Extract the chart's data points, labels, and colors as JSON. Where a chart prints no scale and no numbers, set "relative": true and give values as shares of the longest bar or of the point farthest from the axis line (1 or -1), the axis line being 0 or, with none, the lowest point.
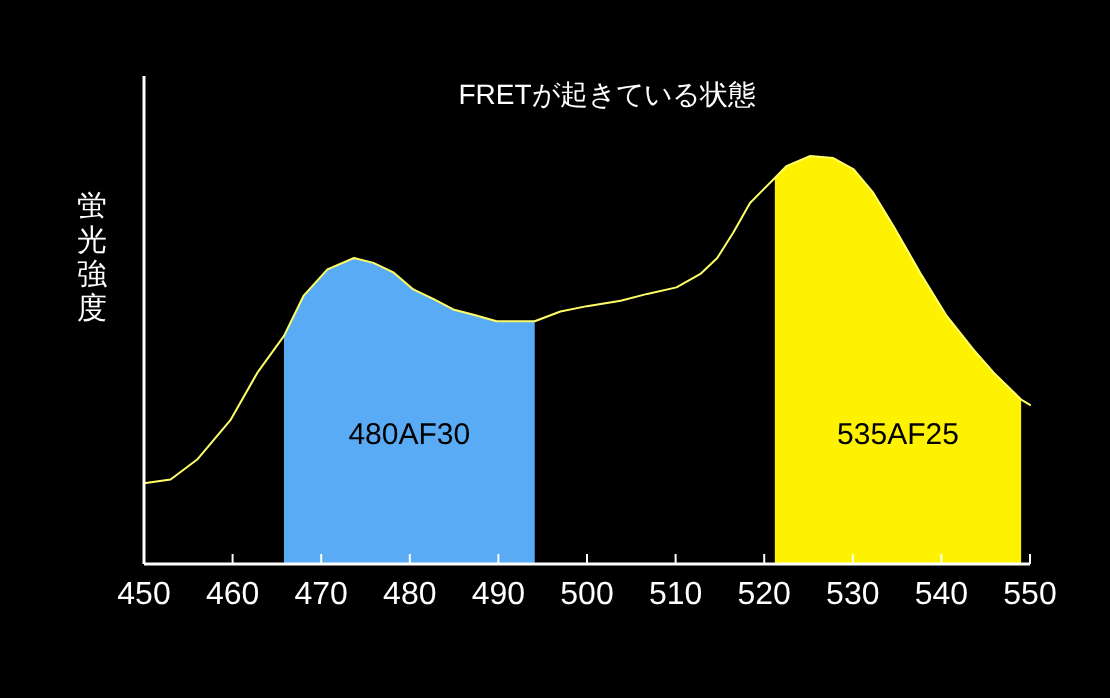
{
  "chart_data": {
    "type": "line",
    "title": "FRETが起きている状態",
    "ylabel": "蛍光強度",
    "relative": true,
    "xlim": [
      450,
      550
    ],
    "xticks": [
      450,
      460,
      470,
      480,
      490,
      500,
      510,
      520,
      530,
      540,
      550
    ],
    "series": [
      {
        "type": "area",
        "name": "480AF30",
        "color": "#5aabf5",
        "x": [
          465.8,
          468,
          470.7,
          473.7,
          475.9,
          478.2,
          480.4,
          482.7,
          484.9,
          487.2,
          489.8,
          494.1
        ],
        "values": [
          0.559,
          0.657,
          0.722,
          0.75,
          0.738,
          0.714,
          0.673,
          0.649,
          0.624,
          0.611,
          0.595,
          0.595
        ]
      },
      {
        "type": "area",
        "name": "535AF25",
        "color": "#fff200",
        "x": [
          521.2,
          522.5,
          525.2,
          527.8,
          530.1,
          532.3,
          534.6,
          537.6,
          540.6,
          543.6,
          545.9,
          549
        ],
        "values": [
          0.946,
          0.975,
          1.0,
          0.995,
          0.967,
          0.91,
          0.828,
          0.714,
          0.608,
          0.526,
          0.469,
          0.403
        ]
      },
      {
        "type": "line",
        "color": "#ffff66",
        "x": [
          450,
          453,
          456,
          459.8,
          462.8,
          465.8,
          468,
          470.7,
          473.7,
          475.9,
          478.2,
          480.4,
          482.7,
          484.9,
          487.2,
          489.8,
          494.1,
          497,
          500,
          503.8,
          506.8,
          510.1,
          512.8,
          514.7,
          516.5,
          518.4,
          521.2,
          522.5,
          525.2,
          527.8,
          530.1,
          532.3,
          534.6,
          537.6,
          540.6,
          543.6,
          545.9,
          549,
          550
        ],
        "values": [
          0.198,
          0.207,
          0.256,
          0.354,
          0.469,
          0.559,
          0.657,
          0.722,
          0.75,
          0.738,
          0.714,
          0.673,
          0.649,
          0.624,
          0.611,
          0.595,
          0.595,
          0.619,
          0.632,
          0.645,
          0.662,
          0.678,
          0.711,
          0.75,
          0.812,
          0.885,
          0.946,
          0.975,
          1.0,
          0.995,
          0.967,
          0.91,
          0.828,
          0.714,
          0.608,
          0.526,
          0.469,
          0.403,
          0.39
        ]
      }
    ]
  }
}
